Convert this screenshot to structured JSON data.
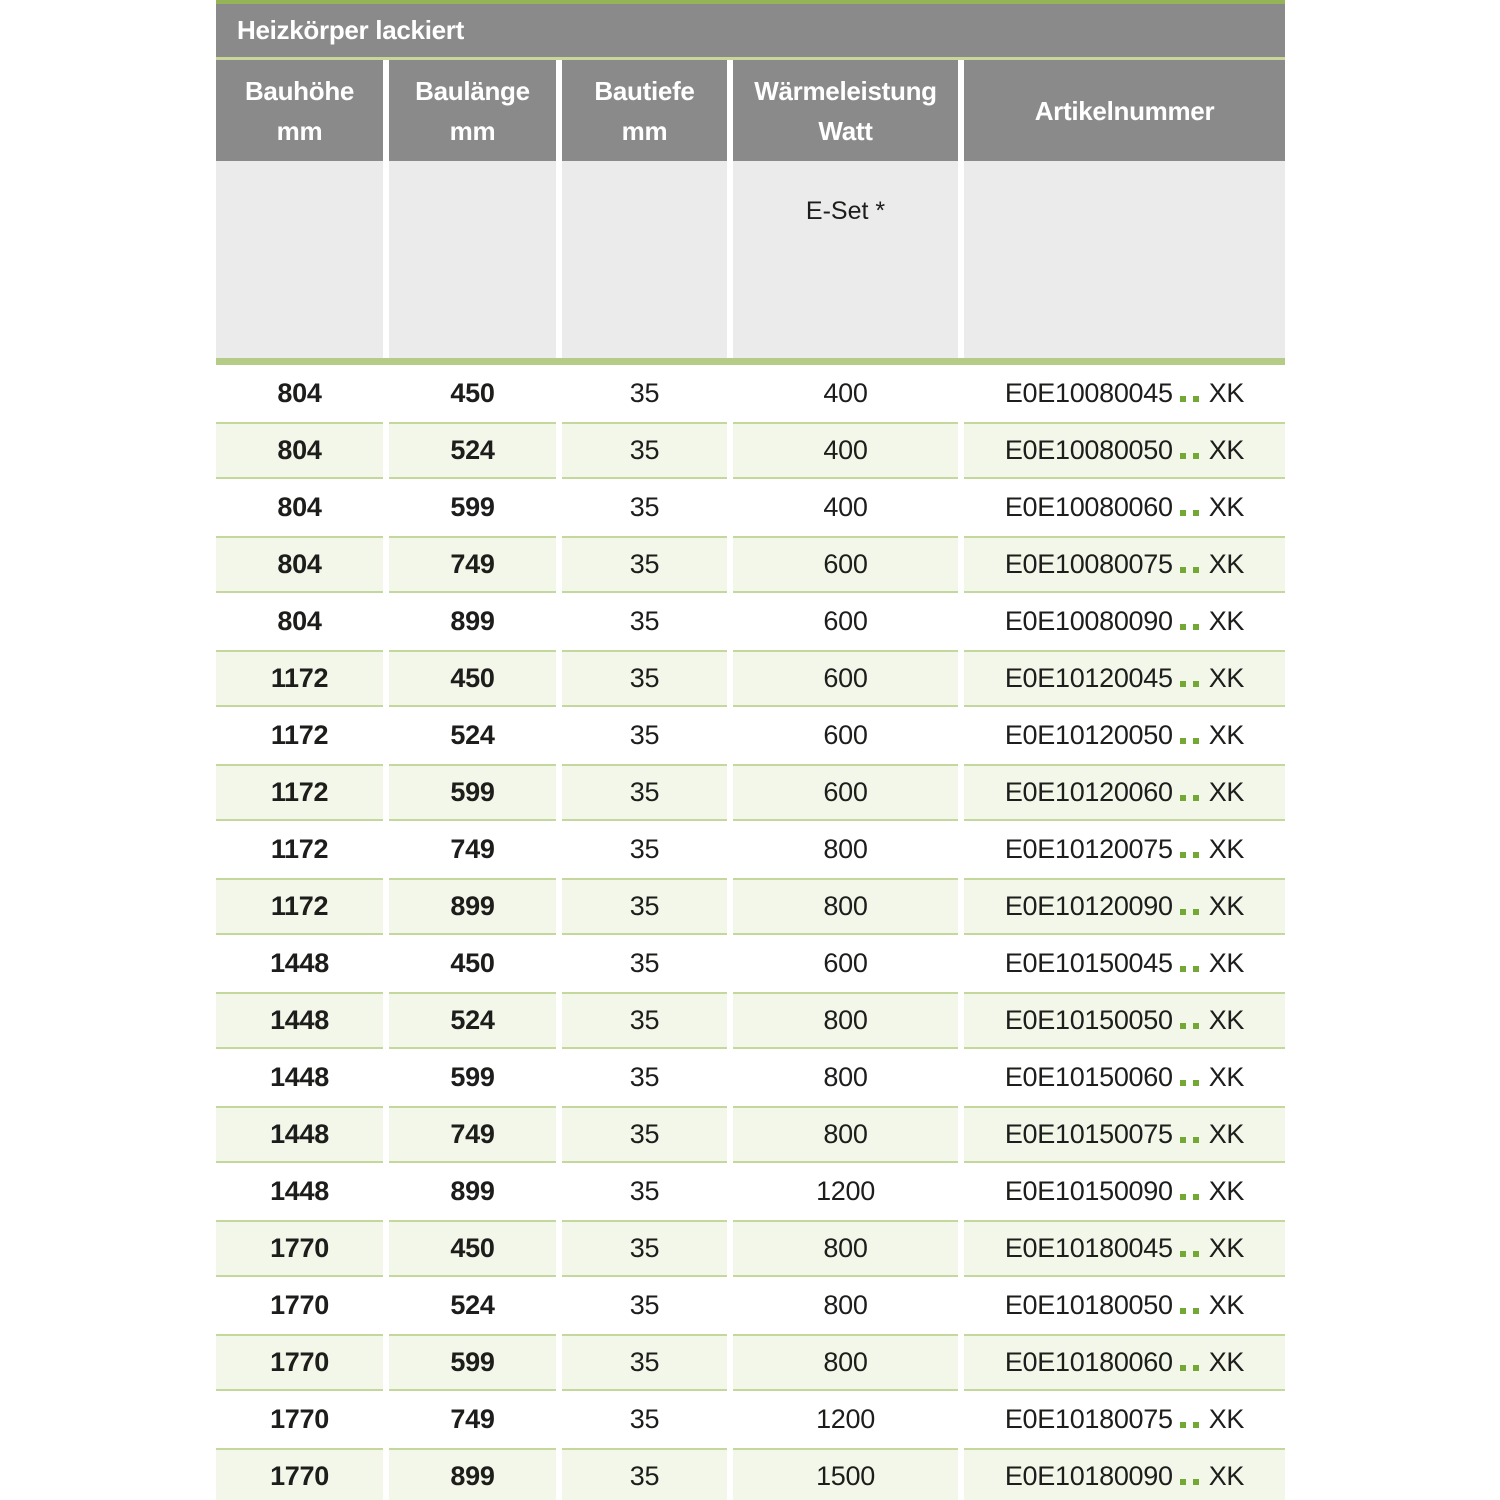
{
  "table": {
    "title": "Heizkörper lackiert",
    "columns": [
      {
        "line1": "Bauhöhe",
        "line2": "mm"
      },
      {
        "line1": "Baulänge",
        "line2": "mm"
      },
      {
        "line1": "Bautiefe",
        "line2": "mm"
      },
      {
        "line1": "Wärmeleistung",
        "line2": "Watt"
      },
      {
        "line1": "Artikelnummer",
        "line2": ""
      }
    ],
    "subheader": {
      "e_set_label": "E-Set *"
    },
    "rows": [
      {
        "bauhoehe": "804",
        "baulaenge": "450",
        "bautiefe": "35",
        "watt": "400",
        "artikel_prefix": "E0E10080045",
        "artikel_suffix": "XK"
      },
      {
        "bauhoehe": "804",
        "baulaenge": "524",
        "bautiefe": "35",
        "watt": "400",
        "artikel_prefix": "E0E10080050",
        "artikel_suffix": "XK"
      },
      {
        "bauhoehe": "804",
        "baulaenge": "599",
        "bautiefe": "35",
        "watt": "400",
        "artikel_prefix": "E0E10080060",
        "artikel_suffix": "XK"
      },
      {
        "bauhoehe": "804",
        "baulaenge": "749",
        "bautiefe": "35",
        "watt": "600",
        "artikel_prefix": "E0E10080075",
        "artikel_suffix": "XK"
      },
      {
        "bauhoehe": "804",
        "baulaenge": "899",
        "bautiefe": "35",
        "watt": "600",
        "artikel_prefix": "E0E10080090",
        "artikel_suffix": "XK"
      },
      {
        "bauhoehe": "1172",
        "baulaenge": "450",
        "bautiefe": "35",
        "watt": "600",
        "artikel_prefix": "E0E10120045",
        "artikel_suffix": "XK"
      },
      {
        "bauhoehe": "1172",
        "baulaenge": "524",
        "bautiefe": "35",
        "watt": "600",
        "artikel_prefix": "E0E10120050",
        "artikel_suffix": "XK"
      },
      {
        "bauhoehe": "1172",
        "baulaenge": "599",
        "bautiefe": "35",
        "watt": "600",
        "artikel_prefix": "E0E10120060",
        "artikel_suffix": "XK"
      },
      {
        "bauhoehe": "1172",
        "baulaenge": "749",
        "bautiefe": "35",
        "watt": "800",
        "artikel_prefix": "E0E10120075",
        "artikel_suffix": "XK"
      },
      {
        "bauhoehe": "1172",
        "baulaenge": "899",
        "bautiefe": "35",
        "watt": "800",
        "artikel_prefix": "E0E10120090",
        "artikel_suffix": "XK"
      },
      {
        "bauhoehe": "1448",
        "baulaenge": "450",
        "bautiefe": "35",
        "watt": "600",
        "artikel_prefix": "E0E10150045",
        "artikel_suffix": "XK"
      },
      {
        "bauhoehe": "1448",
        "baulaenge": "524",
        "bautiefe": "35",
        "watt": "800",
        "artikel_prefix": "E0E10150050",
        "artikel_suffix": "XK"
      },
      {
        "bauhoehe": "1448",
        "baulaenge": "599",
        "bautiefe": "35",
        "watt": "800",
        "artikel_prefix": "E0E10150060",
        "artikel_suffix": "XK"
      },
      {
        "bauhoehe": "1448",
        "baulaenge": "749",
        "bautiefe": "35",
        "watt": "800",
        "artikel_prefix": "E0E10150075",
        "artikel_suffix": "XK"
      },
      {
        "bauhoehe": "1448",
        "baulaenge": "899",
        "bautiefe": "35",
        "watt": "1200",
        "artikel_prefix": "E0E10150090",
        "artikel_suffix": "XK"
      },
      {
        "bauhoehe": "1770",
        "baulaenge": "450",
        "bautiefe": "35",
        "watt": "800",
        "artikel_prefix": "E0E10180045",
        "artikel_suffix": "XK"
      },
      {
        "bauhoehe": "1770",
        "baulaenge": "524",
        "bautiefe": "35",
        "watt": "800",
        "artikel_prefix": "E0E10180050",
        "artikel_suffix": "XK"
      },
      {
        "bauhoehe": "1770",
        "baulaenge": "599",
        "bautiefe": "35",
        "watt": "800",
        "artikel_prefix": "E0E10180060",
        "artikel_suffix": "XK"
      },
      {
        "bauhoehe": "1770",
        "baulaenge": "749",
        "bautiefe": "35",
        "watt": "1200",
        "artikel_prefix": "E0E10180075",
        "artikel_suffix": "XK"
      },
      {
        "bauhoehe": "1770",
        "baulaenge": "899",
        "bautiefe": "35",
        "watt": "1500",
        "artikel_prefix": "E0E10180090",
        "artikel_suffix": "XK"
      }
    ]
  },
  "colors": {
    "header_gray": "#8a8a8a",
    "subheader_gray": "#ebebeb",
    "top_line_green": "#94b457",
    "thin_divider_green": "#c9d69a",
    "separator_bar_green": "#b5cc89",
    "row_fill_green": "#f3f7ea",
    "row_border_green": "#c4d79d",
    "dot_green": "#74a834",
    "text_dark": "#1d1d1b",
    "header_text": "#ffffff"
  }
}
